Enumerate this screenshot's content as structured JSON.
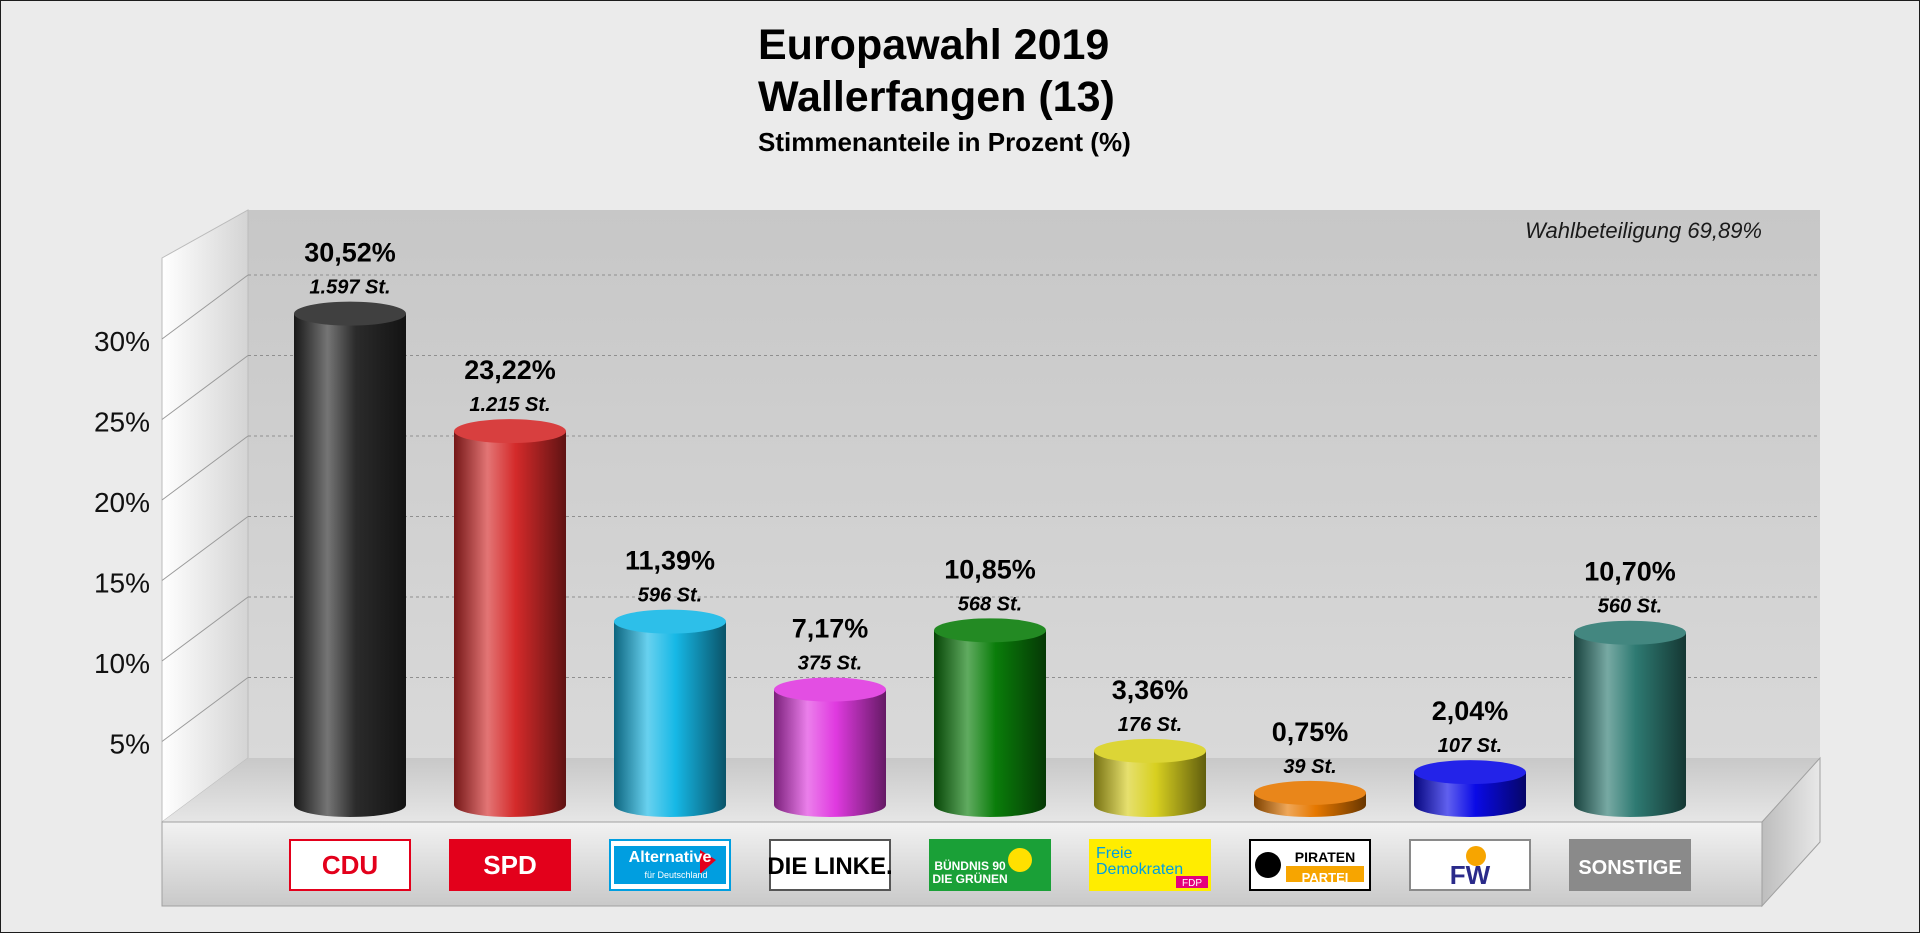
{
  "chart_data": {
    "type": "bar",
    "title": "Europawahl 2019",
    "subtitle": "Wallerfangen (13)",
    "ylabel": "Stimmenanteile in Prozent (%)",
    "xlabel": "",
    "annotation": "Wahlbeteiligung 69,89%",
    "ylim": [
      0,
      35
    ],
    "yticks": [
      5,
      10,
      15,
      20,
      25,
      30
    ],
    "ytick_labels": [
      "5%",
      "10%",
      "15%",
      "20%",
      "25%",
      "30%"
    ],
    "categories": [
      "CDU",
      "SPD",
      "AfD",
      "DIE LINKE",
      "GRÜNE",
      "FDP",
      "PIRATEN",
      "FW",
      "SONSTIGE"
    ],
    "values": [
      30.52,
      23.22,
      11.39,
      7.17,
      10.85,
      3.36,
      0.75,
      2.04,
      10.7
    ],
    "value_labels": [
      "30,52%",
      "23,22%",
      "11,39%",
      "7,17%",
      "10,85%",
      "3,36%",
      "0,75%",
      "2,04%",
      "10,70%"
    ],
    "votes": [
      "1.597 St.",
      "1.215 St.",
      "596 St.",
      "375 St.",
      "568 St.",
      "176 St.",
      "39 St.",
      "107 St.",
      "560 St."
    ],
    "colors": [
      "#2b2b2b",
      "#d42a2a",
      "#16b8e6",
      "#e03ae0",
      "#0a7d0a",
      "#d8d020",
      "#e67800",
      "#0a0ae6",
      "#2e7a72"
    ],
    "logos": [
      {
        "text": "CDU",
        "bg": "#ffffff",
        "fg": "#e3001b",
        "border": "#e3001b"
      },
      {
        "text": "SPD",
        "bg": "#e3001b",
        "fg": "#ffffff",
        "border": "#e3001b"
      },
      {
        "text": "Alternative",
        "sub": "für Deutschland",
        "bg": "#ffffff",
        "fg": "#ffffff",
        "border": "#009ee0"
      },
      {
        "text": "DIE LINKE.",
        "bg": "#ffffff",
        "fg": "#000000",
        "border": "#555555"
      },
      {
        "text": "BÜNDNIS 90",
        "sub": "DIE GRÜNEN",
        "bg": "#1aa037",
        "fg": "#ffffff",
        "border": "#1aa037"
      },
      {
        "text": "Freie",
        "sub": "Demokraten",
        "tag": "FDP",
        "bg": "#ffed00",
        "fg": "#009ee0",
        "border": "#ffed00"
      },
      {
        "text": "PIRATEN",
        "sub": "PARTEI",
        "bg": "#ffffff",
        "fg": "#000000",
        "border": "#000000"
      },
      {
        "text": "FW",
        "bg": "#ffffff",
        "fg": "#2a2a8a",
        "border": "#8a8a8a"
      },
      {
        "text": "SONSTIGE",
        "bg": "#8a8a8a",
        "fg": "#ffffff",
        "border": "#8a8a8a"
      }
    ]
  }
}
